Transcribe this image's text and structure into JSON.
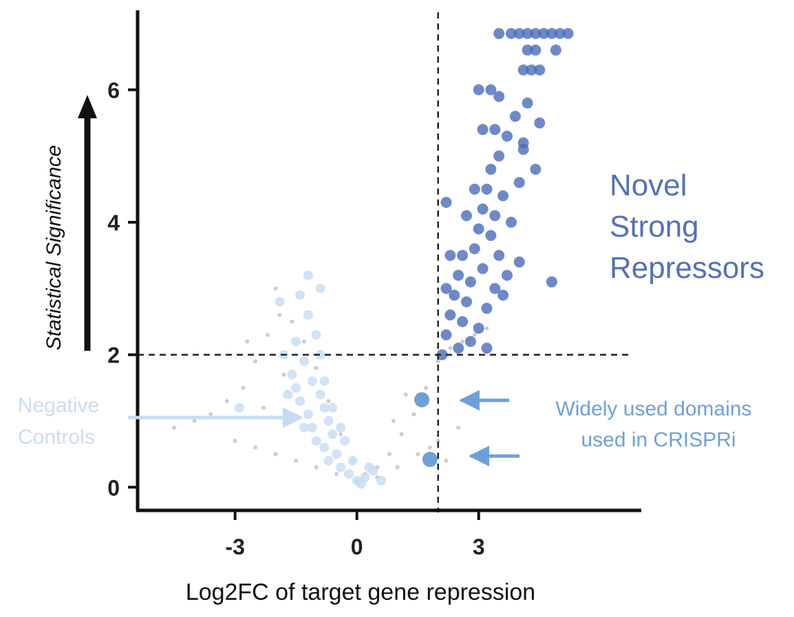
{
  "chart_data": {
    "type": "scatter",
    "title": "",
    "xlabel": "Log2FC of target gene repression",
    "ylabel": "Statistical Significance",
    "xlim": [
      -5.4,
      6.8
    ],
    "ylim": [
      -0.35,
      7.2
    ],
    "x_ticks": [
      -3,
      0,
      3
    ],
    "x_tick_labels": [
      "-3",
      "0",
      "3"
    ],
    "y_ticks": [
      0,
      2,
      4,
      6
    ],
    "y_tick_labels": [
      "0",
      "2",
      "4",
      "6"
    ],
    "grid": false,
    "legend": "none",
    "thresholds": {
      "x": 2,
      "y": 2
    },
    "series": [
      {
        "category": "background",
        "color": "#b8b8b8",
        "points": [
          [
            -4.5,
            0.9
          ],
          [
            -4.0,
            1.0
          ],
          [
            -3.6,
            1.1
          ],
          [
            -3.2,
            1.3
          ],
          [
            -2.8,
            1.5
          ],
          [
            -2.5,
            1.9
          ],
          [
            -2.2,
            2.3
          ],
          [
            -1.9,
            2.6
          ],
          [
            -1.6,
            2.5
          ],
          [
            -1.3,
            2.2
          ],
          [
            -1.0,
            1.8
          ],
          [
            -0.7,
            1.3
          ],
          [
            -0.4,
            0.8
          ],
          [
            -0.1,
            0.4
          ],
          [
            0.2,
            0.2
          ],
          [
            0.5,
            0.3
          ],
          [
            0.8,
            0.5
          ],
          [
            1.1,
            0.8
          ],
          [
            1.4,
            1.1
          ],
          [
            1.7,
            1.5
          ],
          [
            2.0,
            1.9
          ],
          [
            2.3,
            2.1
          ],
          [
            2.6,
            2.2
          ],
          [
            2.9,
            2.3
          ],
          [
            3.2,
            2.4
          ],
          [
            -3.0,
            0.7
          ],
          [
            -2.5,
            0.6
          ],
          [
            -2.0,
            0.5
          ],
          [
            -1.5,
            0.4
          ],
          [
            -1.0,
            0.3
          ],
          [
            -0.5,
            0.2
          ],
          [
            0.0,
            0.1
          ],
          [
            0.5,
            0.15
          ],
          [
            1.0,
            0.3
          ],
          [
            1.5,
            0.5
          ],
          [
            2.0,
            0.7
          ],
          [
            2.5,
            0.9
          ],
          [
            1.2,
            1.4
          ],
          [
            0.9,
            1.0
          ],
          [
            -2.7,
            2.2
          ],
          [
            -2.0,
            3.0
          ],
          [
            -1.8,
            1.7
          ],
          [
            -2.3,
            1.2
          ],
          [
            1.8,
            0.6
          ],
          [
            2.2,
            0.4
          ]
        ]
      },
      {
        "name": "Negative Controls",
        "color": "#c6dcf3",
        "points": [
          [
            -2.9,
            1.2
          ],
          [
            -1.8,
            2.0
          ],
          [
            -1.6,
            1.7
          ],
          [
            -1.5,
            1.5
          ],
          [
            -1.5,
            2.2
          ],
          [
            -1.4,
            1.3
          ],
          [
            -1.3,
            1.9
          ],
          [
            -1.2,
            1.1
          ],
          [
            -1.2,
            2.6
          ],
          [
            -1.1,
            0.9
          ],
          [
            -1.1,
            1.6
          ],
          [
            -1.0,
            2.3
          ],
          [
            -1.0,
            0.7
          ],
          [
            -0.9,
            1.4
          ],
          [
            -0.9,
            2.0
          ],
          [
            -0.8,
            0.6
          ],
          [
            -0.8,
            1.2
          ],
          [
            -0.7,
            1.0
          ],
          [
            -0.7,
            0.4
          ],
          [
            -0.6,
            0.8
          ],
          [
            -0.5,
            0.5
          ],
          [
            -0.4,
            0.3
          ],
          [
            -0.3,
            0.7
          ],
          [
            -0.2,
            0.2
          ],
          [
            -0.1,
            0.4
          ],
          [
            0.0,
            0.1
          ],
          [
            0.1,
            0.05
          ],
          [
            0.2,
            0.15
          ],
          [
            0.4,
            0.25
          ],
          [
            0.6,
            0.1
          ],
          [
            -1.9,
            2.8
          ],
          [
            -1.4,
            2.9
          ],
          [
            -1.2,
            3.2
          ],
          [
            -0.9,
            3.0
          ],
          [
            -1.7,
            1.4
          ],
          [
            -1.3,
            0.9
          ],
          [
            -0.8,
            1.6
          ],
          [
            -0.6,
            1.2
          ],
          [
            -0.4,
            0.9
          ],
          [
            0.3,
            0.3
          ]
        ]
      },
      {
        "name": "Widely used domains used in CRISPRi",
        "color": "#6ea0d8",
        "points": [
          [
            1.6,
            1.32
          ],
          [
            1.8,
            0.42
          ]
        ]
      },
      {
        "name": "Novel Strong Repressors",
        "color": "#4a6bba",
        "points": [
          [
            2.1,
            2.0
          ],
          [
            2.2,
            2.3
          ],
          [
            2.3,
            2.6
          ],
          [
            2.4,
            2.9
          ],
          [
            2.5,
            2.1
          ],
          [
            2.5,
            3.2
          ],
          [
            2.6,
            2.5
          ],
          [
            2.6,
            3.5
          ],
          [
            2.7,
            2.8
          ],
          [
            2.8,
            3.1
          ],
          [
            2.8,
            2.2
          ],
          [
            2.9,
            3.6
          ],
          [
            3.0,
            2.4
          ],
          [
            3.0,
            3.9
          ],
          [
            3.1,
            3.3
          ],
          [
            3.1,
            4.2
          ],
          [
            3.2,
            2.7
          ],
          [
            3.2,
            4.5
          ],
          [
            3.3,
            3.8
          ],
          [
            3.3,
            4.8
          ],
          [
            3.4,
            3.0
          ],
          [
            3.4,
            4.1
          ],
          [
            3.5,
            5.0
          ],
          [
            3.5,
            3.5
          ],
          [
            3.6,
            4.4
          ],
          [
            3.7,
            5.3
          ],
          [
            3.8,
            4.0
          ],
          [
            3.9,
            5.6
          ],
          [
            4.0,
            4.6
          ],
          [
            4.1,
            5.1
          ],
          [
            3.0,
            6.0
          ],
          [
            3.3,
            6.0
          ],
          [
            3.5,
            5.9
          ],
          [
            4.2,
            5.8
          ],
          [
            4.5,
            5.5
          ],
          [
            2.2,
            4.3
          ],
          [
            2.3,
            3.5
          ],
          [
            2.2,
            3.0
          ],
          [
            3.2,
            2.1
          ],
          [
            3.6,
            2.9
          ],
          [
            4.0,
            3.4
          ],
          [
            4.8,
            3.1
          ],
          [
            3.1,
            5.4
          ],
          [
            3.4,
            5.4
          ],
          [
            3.5,
            6.85
          ],
          [
            3.8,
            6.85
          ],
          [
            4.0,
            6.85
          ],
          [
            4.2,
            6.85
          ],
          [
            4.4,
            6.85
          ],
          [
            4.6,
            6.85
          ],
          [
            4.8,
            6.85
          ],
          [
            5.0,
            6.85
          ],
          [
            5.2,
            6.85
          ],
          [
            4.1,
            6.3
          ],
          [
            4.3,
            6.3
          ],
          [
            4.5,
            6.3
          ],
          [
            4.2,
            6.6
          ],
          [
            4.4,
            6.6
          ],
          [
            4.9,
            6.6
          ],
          [
            4.1,
            5.2
          ],
          [
            4.4,
            4.8
          ],
          [
            3.7,
            3.2
          ],
          [
            2.9,
            4.5
          ],
          [
            2.7,
            4.1
          ]
        ]
      }
    ],
    "annotations": {
      "novel": [
        "Novel",
        "Strong",
        "Repressors"
      ],
      "negative": [
        "Negative",
        "Controls"
      ],
      "domains": [
        "Widely used domains",
        "used in CRISPRi"
      ]
    }
  }
}
